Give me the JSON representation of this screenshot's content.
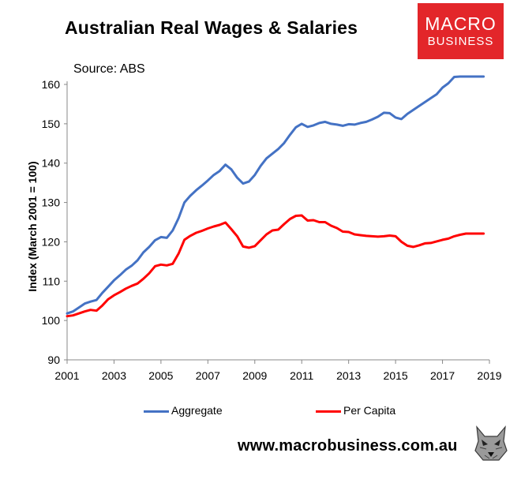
{
  "chart_data": {
    "type": "line",
    "title": "Australian Real Wages & Salaries",
    "subtitle": "Source: ABS",
    "ylabel": "Index (March 2001 = 100)",
    "xlabel": "",
    "xlim": [
      2001,
      2019
    ],
    "ylim": [
      90,
      160
    ],
    "xticks": [
      "2001",
      "2003",
      "2005",
      "2007",
      "2009",
      "2011",
      "2013",
      "2015",
      "2017",
      "2019"
    ],
    "yticks": [
      "90",
      "100",
      "110",
      "120",
      "130",
      "140",
      "150",
      "160"
    ],
    "grid": false,
    "legend_position": "bottom",
    "x": [
      2001.0,
      2001.25,
      2001.5,
      2001.75,
      2002.0,
      2002.25,
      2002.5,
      2002.75,
      2003.0,
      2003.25,
      2003.5,
      2003.75,
      2004.0,
      2004.25,
      2004.5,
      2004.75,
      2005.0,
      2005.25,
      2005.5,
      2005.75,
      2006.0,
      2006.25,
      2006.5,
      2006.75,
      2007.0,
      2007.25,
      2007.5,
      2007.75,
      2008.0,
      2008.25,
      2008.5,
      2008.75,
      2009.0,
      2009.25,
      2009.5,
      2009.75,
      2010.0,
      2010.25,
      2010.5,
      2010.75,
      2011.0,
      2011.25,
      2011.5,
      2011.75,
      2012.0,
      2012.25,
      2012.5,
      2012.75,
      2013.0,
      2013.25,
      2013.5,
      2013.75,
      2014.0,
      2014.25,
      2014.5,
      2014.75,
      2015.0,
      2015.25,
      2015.5,
      2015.75,
      2016.0,
      2016.25,
      2016.5,
      2016.75,
      2017.0,
      2017.25,
      2017.5,
      2017.75,
      2018.0,
      2018.25,
      2018.5,
      2018.75
    ],
    "series": [
      {
        "name": "Aggregate",
        "color": "#4472c4",
        "values": [
          101.8,
          102.3,
          103.3,
          104.3,
          104.8,
          105.2,
          107.0,
          108.6,
          110.2,
          111.5,
          112.9,
          113.9,
          115.3,
          117.3,
          118.7,
          120.4,
          121.2,
          121.0,
          122.9,
          126.0,
          130.0,
          131.7,
          133.1,
          134.3,
          135.6,
          137.0,
          138.0,
          139.6,
          138.4,
          136.3,
          134.8,
          135.3,
          137.0,
          139.3,
          141.2,
          142.4,
          143.6,
          145.1,
          147.2,
          149.1,
          150.0,
          149.2,
          149.6,
          150.2,
          150.5,
          150.0,
          149.8,
          149.5,
          149.9,
          149.8,
          150.2,
          150.5,
          151.1,
          151.8,
          152.8,
          152.7,
          151.6,
          151.2,
          152.5,
          153.5,
          154.5,
          155.5,
          156.5,
          157.5,
          159.2,
          160.3,
          161.9,
          162.0,
          162.0,
          162.0,
          162.0,
          162.0
        ]
      },
      {
        "name": "Per Capita",
        "color": "#ff0000",
        "values": [
          101.1,
          101.3,
          101.8,
          102.3,
          102.7,
          102.5,
          103.8,
          105.4,
          106.4,
          107.2,
          108.1,
          108.8,
          109.4,
          110.6,
          112.0,
          113.8,
          114.2,
          114.0,
          114.4,
          117.0,
          120.5,
          121.5,
          122.3,
          122.8,
          123.4,
          123.9,
          124.3,
          124.9,
          123.2,
          121.4,
          118.8,
          118.5,
          118.9,
          120.4,
          121.9,
          122.9,
          123.1,
          124.5,
          125.8,
          126.6,
          126.7,
          125.4,
          125.5,
          125.0,
          125.0,
          124.1,
          123.5,
          122.6,
          122.5,
          121.9,
          121.7,
          121.5,
          121.4,
          121.3,
          121.4,
          121.6,
          121.4,
          120.0,
          119.0,
          118.7,
          119.1,
          119.6,
          119.7,
          120.1,
          120.5,
          120.8,
          121.4,
          121.8,
          122.1,
          122.1,
          122.1,
          122.1
        ]
      }
    ]
  },
  "branding": {
    "logo_line1": "MACRO",
    "logo_line2": "BUSINESS",
    "logo_color": "#e3262a",
    "website": "www.macrobusiness.com.au",
    "wolf_icon": "wolf-icon"
  }
}
